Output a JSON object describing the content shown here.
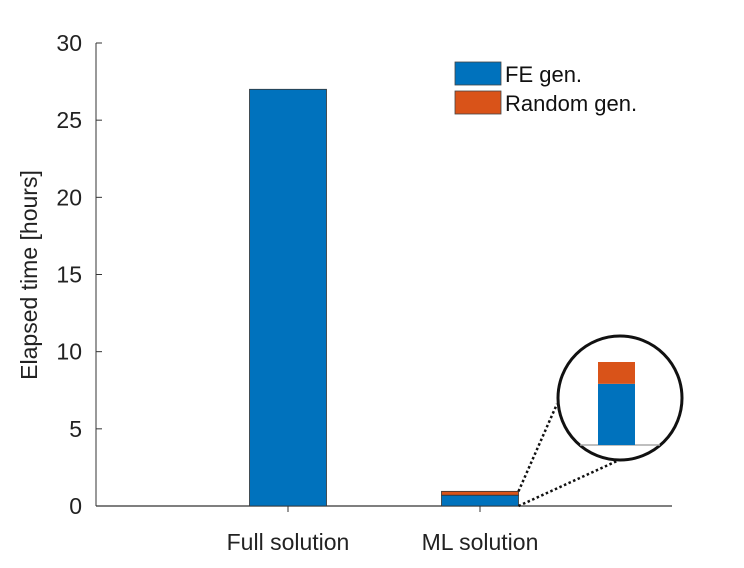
{
  "chart_data": {
    "type": "bar",
    "stacked": true,
    "title": "",
    "xlabel": "",
    "ylabel": "Elapsed time [hours]",
    "categories": [
      "Full solution",
      "ML solution"
    ],
    "series": [
      {
        "name": "FE gen.",
        "color": "#0072BD",
        "values": [
          27.0,
          0.7
        ]
      },
      {
        "name": "Random gen.",
        "color": "#D95319",
        "values": [
          0,
          0.25
        ]
      }
    ],
    "ylim": [
      0,
      30
    ],
    "yticks": [
      "0",
      "5",
      "10",
      "15",
      "20",
      "25",
      "30"
    ],
    "grid": false,
    "legend": "top-right",
    "annotations": [
      "magnified inset of ML solution bar"
    ]
  }
}
